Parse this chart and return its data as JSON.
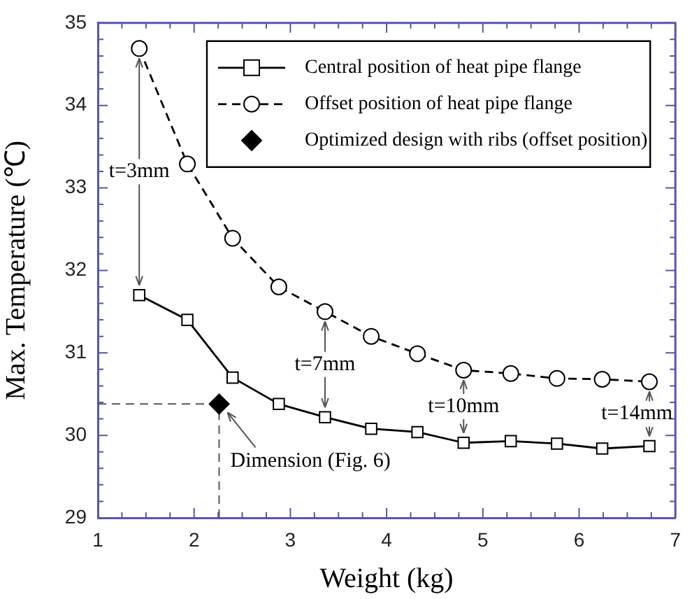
{
  "chart_data": {
    "type": "line",
    "xlabel": "Weight (kg)",
    "ylabel": "Max. Temperature (℃)",
    "xlim": [
      1,
      7
    ],
    "ylim": [
      29,
      35
    ],
    "xticks": [
      1,
      {
        "value": 1.25,
        "label": null
      },
      {
        "value": 1.5,
        "label": null
      },
      {
        "value": 1.75,
        "label": null
      },
      2,
      {
        "value": 2.25,
        "label": null
      },
      {
        "value": 2.5,
        "label": null
      },
      {
        "value": 2.75,
        "label": null
      },
      3,
      {
        "value": 3.25,
        "label": null
      },
      {
        "value": 3.5,
        "label": null
      },
      {
        "value": 3.75,
        "label": null
      },
      4,
      {
        "value": 4.25,
        "label": null
      },
      {
        "value": 4.5,
        "label": null
      },
      {
        "value": 4.75,
        "label": null
      },
      5,
      {
        "value": 5.25,
        "label": null
      },
      {
        "value": 5.5,
        "label": null
      },
      {
        "value": 5.75,
        "label": null
      },
      6,
      {
        "value": 6.25,
        "label": null
      },
      {
        "value": 6.5,
        "label": null
      },
      {
        "value": 6.75,
        "label": null
      },
      7
    ],
    "yticks": [
      29,
      {
        "value": 29.2,
        "label": null
      },
      {
        "value": 29.4,
        "label": null
      },
      {
        "value": 29.6,
        "label": null
      },
      {
        "value": 29.8,
        "label": null
      },
      30,
      {
        "value": 30.2,
        "label": null
      },
      {
        "value": 30.4,
        "label": null
      },
      {
        "value": 30.6,
        "label": null
      },
      {
        "value": 30.8,
        "label": null
      },
      31,
      {
        "value": 31.2,
        "label": null
      },
      {
        "value": 31.4,
        "label": null
      },
      {
        "value": 31.6,
        "label": null
      },
      {
        "value": 31.8,
        "label": null
      },
      32,
      {
        "value": 32.2,
        "label": null
      },
      {
        "value": 32.4,
        "label": null
      },
      {
        "value": 32.6,
        "label": null
      },
      {
        "value": 32.8,
        "label": null
      },
      33,
      {
        "value": 33.2,
        "label": null
      },
      {
        "value": 33.4,
        "label": null
      },
      {
        "value": 33.6,
        "label": null
      },
      {
        "value": 33.8,
        "label": null
      },
      34,
      {
        "value": 34.2,
        "label": null
      },
      {
        "value": 34.4,
        "label": null
      },
      {
        "value": 34.6,
        "label": null
      },
      {
        "value": 34.8,
        "label": null
      },
      35
    ],
    "grid": false,
    "legend": "top right",
    "series": [
      {
        "name": "Central position of heat pipe flange",
        "color": "#000000",
        "marker": "square",
        "line_style": "solid",
        "x": [
          1.43,
          1.93,
          2.4,
          2.88,
          3.36,
          3.84,
          4.32,
          4.8,
          5.29,
          5.77,
          6.24,
          6.73
        ],
        "values": [
          31.7,
          31.4,
          30.7,
          30.38,
          30.22,
          30.08,
          30.04,
          29.91,
          29.93,
          29.9,
          29.84,
          29.87
        ]
      },
      {
        "name": "Offset position of heat pipe flange",
        "color": "#000000",
        "marker": "circle",
        "line_style": "dashed",
        "x": [
          1.43,
          1.93,
          2.4,
          2.88,
          3.36,
          3.84,
          4.32,
          4.8,
          5.29,
          5.77,
          6.24,
          6.73
        ],
        "values": [
          34.69,
          33.29,
          32.39,
          31.8,
          31.5,
          31.2,
          30.99,
          30.79,
          30.75,
          30.69,
          30.68,
          30.65
        ]
      },
      {
        "name": "Optimized design with ribs (offset position)",
        "type": "scatter",
        "color": "#000000",
        "marker": "diamond",
        "x": [
          2.26
        ],
        "values": [
          30.38
        ]
      }
    ],
    "ref_lines": [
      {
        "axis": "x",
        "value": 2.26,
        "color": "#555555",
        "line_style": "dashed"
      },
      {
        "axis": "y",
        "value": 30.38,
        "color": "#555555",
        "line_style": "dashed"
      }
    ],
    "annotations": [
      {
        "text": "t=3mm",
        "x": 1.43,
        "y": 34.69
      },
      {
        "text": "t=7mm",
        "x": 3.36,
        "y": 31.5
      },
      {
        "text": "t=10mm",
        "x": 4.8,
        "y": 30.79
      },
      {
        "text": "t=14mm",
        "x": 6.73,
        "y": 30.65
      },
      {
        "text": "Dimension (Fig. 6)",
        "x": 2.26,
        "y": 30.38
      }
    ]
  }
}
